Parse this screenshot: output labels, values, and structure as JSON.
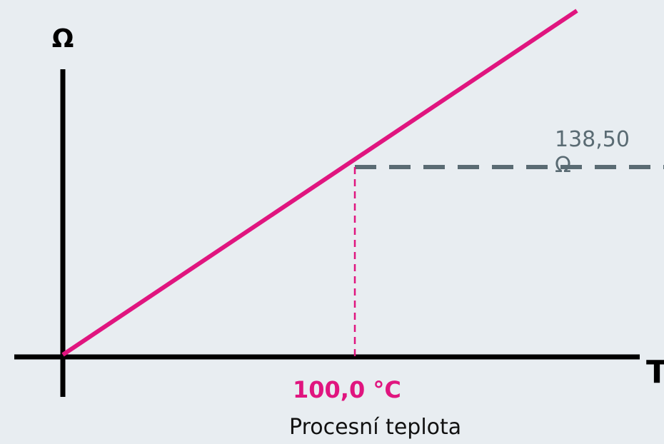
{
  "y_axis_label": "Ω",
  "x_axis_label": "T",
  "point_temperature": "100,0 °C",
  "x_caption": "Procesní teplota",
  "point_resistance": "138,50 Ω"
}
